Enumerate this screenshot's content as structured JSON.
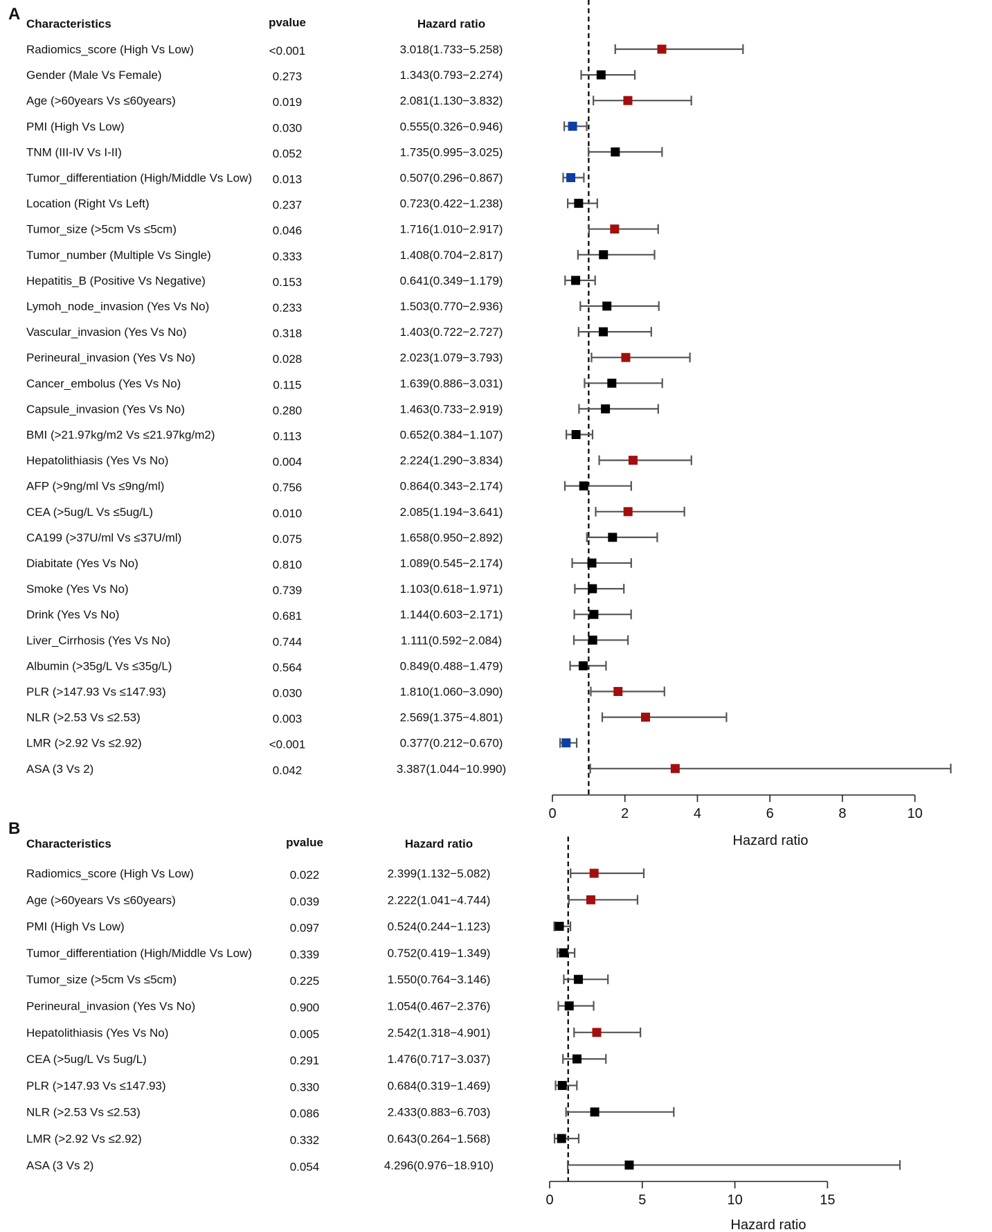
{
  "colors": {
    "significant_high": "#a30e0e",
    "significant_low": "#0d3fa3",
    "nonsignificant": "#000000",
    "ci_line": "#555555"
  },
  "chart_data": [
    {
      "panel": "A",
      "type": "forest",
      "headers": {
        "characteristics": "Characteristics",
        "pvalue": "pvalue",
        "hr": "Hazard ratio"
      },
      "xlabel": "Hazard ratio",
      "xlim": [
        0,
        11
      ],
      "ticks": [
        0,
        2,
        4,
        6,
        8,
        10
      ],
      "reference_line": 1,
      "rows": [
        {
          "label": "Radiomics_score (High Vs Low)",
          "p": "<0.001",
          "hr_text": "3.018(1.733−5.258)",
          "hr": 3.018,
          "lo": 1.733,
          "hi": 5.258,
          "color": "significant_high"
        },
        {
          "label": "Gender (Male Vs Female)",
          "p": "0.273",
          "hr_text": "1.343(0.793−2.274)",
          "hr": 1.343,
          "lo": 0.793,
          "hi": 2.274,
          "color": "nonsignificant"
        },
        {
          "label": "Age (>60years Vs ≤60years)",
          "p": "0.019",
          "hr_text": "2.081(1.130−3.832)",
          "hr": 2.081,
          "lo": 1.13,
          "hi": 3.832,
          "color": "significant_high"
        },
        {
          "label": "PMI (High Vs Low)",
          "p": "0.030",
          "hr_text": "0.555(0.326−0.946)",
          "hr": 0.555,
          "lo": 0.326,
          "hi": 0.946,
          "color": "significant_low"
        },
        {
          "label": "TNM (III-IV Vs I-II)",
          "p": "0.052",
          "hr_text": "1.735(0.995−3.025)",
          "hr": 1.735,
          "lo": 0.995,
          "hi": 3.025,
          "color": "nonsignificant"
        },
        {
          "label": "Tumor_differentiation (High/Middle Vs Low)",
          "p": "0.013",
          "hr_text": "0.507(0.296−0.867)",
          "hr": 0.507,
          "lo": 0.296,
          "hi": 0.867,
          "color": "significant_low"
        },
        {
          "label": "Location (Right Vs Left)",
          "p": "0.237",
          "hr_text": "0.723(0.422−1.238)",
          "hr": 0.723,
          "lo": 0.422,
          "hi": 1.238,
          "color": "nonsignificant"
        },
        {
          "label": "Tumor_size (>5cm Vs ≤5cm)",
          "p": "0.046",
          "hr_text": "1.716(1.010−2.917)",
          "hr": 1.716,
          "lo": 1.01,
          "hi": 2.917,
          "color": "significant_high"
        },
        {
          "label": "Tumor_number (Multiple Vs Single)",
          "p": "0.333",
          "hr_text": "1.408(0.704−2.817)",
          "hr": 1.408,
          "lo": 0.704,
          "hi": 2.817,
          "color": "nonsignificant"
        },
        {
          "label": "Hepatitis_B (Positive Vs Negative)",
          "p": "0.153",
          "hr_text": "0.641(0.349−1.179)",
          "hr": 0.641,
          "lo": 0.349,
          "hi": 1.179,
          "color": "nonsignificant"
        },
        {
          "label": "Lymoh_node_invasion (Yes Vs No)",
          "p": "0.233",
          "hr_text": "1.503(0.770−2.936)",
          "hr": 1.503,
          "lo": 0.77,
          "hi": 2.936,
          "color": "nonsignificant"
        },
        {
          "label": "Vascular_invasion (Yes Vs No)",
          "p": "0.318",
          "hr_text": "1.403(0.722−2.727)",
          "hr": 1.403,
          "lo": 0.722,
          "hi": 2.727,
          "color": "nonsignificant"
        },
        {
          "label": "Perineural_invasion (Yes Vs No)",
          "p": "0.028",
          "hr_text": "2.023(1.079−3.793)",
          "hr": 2.023,
          "lo": 1.079,
          "hi": 3.793,
          "color": "significant_high"
        },
        {
          "label": "Cancer_embolus (Yes Vs No)",
          "p": "0.115",
          "hr_text": "1.639(0.886−3.031)",
          "hr": 1.639,
          "lo": 0.886,
          "hi": 3.031,
          "color": "nonsignificant"
        },
        {
          "label": "Capsule_invasion (Yes Vs No)",
          "p": "0.280",
          "hr_text": "1.463(0.733−2.919)",
          "hr": 1.463,
          "lo": 0.733,
          "hi": 2.919,
          "color": "nonsignificant"
        },
        {
          "label": "BMI (>21.97kg/m2 Vs ≤21.97kg/m2)",
          "p": "0.113",
          "hr_text": "0.652(0.384−1.107)",
          "hr": 0.652,
          "lo": 0.384,
          "hi": 1.107,
          "color": "nonsignificant"
        },
        {
          "label": "Hepatolithiasis (Yes Vs No)",
          "p": "0.004",
          "hr_text": "2.224(1.290−3.834)",
          "hr": 2.224,
          "lo": 1.29,
          "hi": 3.834,
          "color": "significant_high"
        },
        {
          "label": "AFP (>9ng/ml Vs ≤9ng/ml)",
          "p": "0.756",
          "hr_text": "0.864(0.343−2.174)",
          "hr": 0.864,
          "lo": 0.343,
          "hi": 2.174,
          "color": "nonsignificant"
        },
        {
          "label": "CEA (>5ug/L Vs ≤5ug/L)",
          "p": "0.010",
          "hr_text": "2.085(1.194−3.641)",
          "hr": 2.085,
          "lo": 1.194,
          "hi": 3.641,
          "color": "significant_high"
        },
        {
          "label": "CA199 (>37U/ml Vs ≤37U/ml)",
          "p": "0.075",
          "hr_text": "1.658(0.950−2.892)",
          "hr": 1.658,
          "lo": 0.95,
          "hi": 2.892,
          "color": "nonsignificant"
        },
        {
          "label": "Diabitate (Yes Vs No)",
          "p": "0.810",
          "hr_text": "1.089(0.545−2.174)",
          "hr": 1.089,
          "lo": 0.545,
          "hi": 2.174,
          "color": "nonsignificant"
        },
        {
          "label": "Smoke (Yes Vs No)",
          "p": "0.739",
          "hr_text": "1.103(0.618−1.971)",
          "hr": 1.103,
          "lo": 0.618,
          "hi": 1.971,
          "color": "nonsignificant"
        },
        {
          "label": "Drink (Yes Vs No)",
          "p": "0.681",
          "hr_text": "1.144(0.603−2.171)",
          "hr": 1.144,
          "lo": 0.603,
          "hi": 2.171,
          "color": "nonsignificant"
        },
        {
          "label": "Liver_Cirrhosis (Yes Vs No)",
          "p": "0.744",
          "hr_text": "1.111(0.592−2.084)",
          "hr": 1.111,
          "lo": 0.592,
          "hi": 2.084,
          "color": "nonsignificant"
        },
        {
          "label": "Albumin (>35g/L Vs ≤35g/L)",
          "p": "0.564",
          "hr_text": "0.849(0.488−1.479)",
          "hr": 0.849,
          "lo": 0.488,
          "hi": 1.479,
          "color": "nonsignificant"
        },
        {
          "label": "PLR (>147.93 Vs ≤147.93)",
          "p": "0.030",
          "hr_text": "1.810(1.060−3.090)",
          "hr": 1.81,
          "lo": 1.06,
          "hi": 3.09,
          "color": "significant_high"
        },
        {
          "label": "NLR (>2.53 Vs ≤2.53)",
          "p": "0.003",
          "hr_text": "2.569(1.375−4.801)",
          "hr": 2.569,
          "lo": 1.375,
          "hi": 4.801,
          "color": "significant_high"
        },
        {
          "label": "LMR (>2.92 Vs ≤2.92)",
          "p": "<0.001",
          "hr_text": "0.377(0.212−0.670)",
          "hr": 0.377,
          "lo": 0.212,
          "hi": 0.67,
          "color": "significant_low"
        },
        {
          "label": "ASA (3 Vs 2)",
          "p": "0.042",
          "hr_text": "3.387(1.044−10.990)",
          "hr": 3.387,
          "lo": 1.044,
          "hi": 10.99,
          "color": "significant_high"
        }
      ]
    },
    {
      "panel": "B",
      "type": "forest",
      "headers": {
        "characteristics": "Characteristics",
        "pvalue": "pvalue",
        "hr": "Hazard ratio"
      },
      "xlabel": "Hazard ratio",
      "xlim": [
        0,
        18.91
      ],
      "ticks": [
        0,
        5,
        10,
        15
      ],
      "reference_line": 1,
      "rows": [
        {
          "label": "Radiomics_score (High Vs Low)",
          "p": "0.022",
          "hr_text": "2.399(1.132−5.082)",
          "hr": 2.399,
          "lo": 1.132,
          "hi": 5.082,
          "color": "significant_high"
        },
        {
          "label": "Age (>60years Vs ≤60years)",
          "p": "0.039",
          "hr_text": "2.222(1.041−4.744)",
          "hr": 2.222,
          "lo": 1.041,
          "hi": 4.744,
          "color": "significant_high"
        },
        {
          "label": "PMI (High Vs Low)",
          "p": "0.097",
          "hr_text": "0.524(0.244−1.123)",
          "hr": 0.524,
          "lo": 0.244,
          "hi": 1.123,
          "color": "nonsignificant"
        },
        {
          "label": "Tumor_differentiation (High/Middle Vs Low)",
          "p": "0.339",
          "hr_text": "0.752(0.419−1.349)",
          "hr": 0.752,
          "lo": 0.419,
          "hi": 1.349,
          "color": "nonsignificant"
        },
        {
          "label": "Tumor_size (>5cm Vs ≤5cm)",
          "p": "0.225",
          "hr_text": "1.550(0.764−3.146)",
          "hr": 1.55,
          "lo": 0.764,
          "hi": 3.146,
          "color": "nonsignificant"
        },
        {
          "label": "Perineural_invasion (Yes Vs No)",
          "p": "0.900",
          "hr_text": "1.054(0.467−2.376)",
          "hr": 1.054,
          "lo": 0.467,
          "hi": 2.376,
          "color": "nonsignificant"
        },
        {
          "label": "Hepatolithiasis (Yes Vs No)",
          "p": "0.005",
          "hr_text": "2.542(1.318−4.901)",
          "hr": 2.542,
          "lo": 1.318,
          "hi": 4.901,
          "color": "significant_high"
        },
        {
          "label": "CEA (>5ug/L Vs 5ug/L)",
          "p": "0.291",
          "hr_text": "1.476(0.717−3.037)",
          "hr": 1.476,
          "lo": 0.717,
          "hi": 3.037,
          "color": "nonsignificant"
        },
        {
          "label": "PLR (>147.93 Vs ≤147.93)",
          "p": "0.330",
          "hr_text": "0.684(0.319−1.469)",
          "hr": 0.684,
          "lo": 0.319,
          "hi": 1.469,
          "color": "nonsignificant"
        },
        {
          "label": "NLR (>2.53 Vs ≤2.53)",
          "p": "0.086",
          "hr_text": "2.433(0.883−6.703)",
          "hr": 2.433,
          "lo": 0.883,
          "hi": 6.703,
          "color": "nonsignificant"
        },
        {
          "label": "LMR (>2.92 Vs ≤2.92)",
          "p": "0.332",
          "hr_text": "0.643(0.264−1.568)",
          "hr": 0.643,
          "lo": 0.264,
          "hi": 1.568,
          "color": "nonsignificant"
        },
        {
          "label": "ASA (3 Vs 2)",
          "p": "0.054",
          "hr_text": "4.296(0.976−18.910)",
          "hr": 4.296,
          "lo": 0.976,
          "hi": 18.91,
          "color": "nonsignificant"
        }
      ]
    }
  ]
}
